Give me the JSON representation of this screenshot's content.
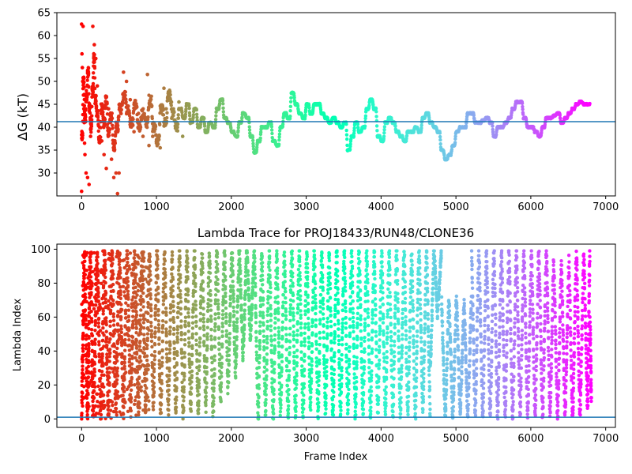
{
  "chart_data": [
    {
      "type": "scatter",
      "title": "",
      "xlabel": "",
      "ylabel": "ΔG (kT)",
      "xlim": [
        -330,
        7130
      ],
      "ylim": [
        25,
        65
      ],
      "x_ticks": [
        "0",
        "1000",
        "2000",
        "3000",
        "4000",
        "5000",
        "6000",
        "7000"
      ],
      "y_ticks": [
        "30",
        "35",
        "40",
        "45",
        "50",
        "55",
        "60",
        "65"
      ],
      "colormap": "rainbow",
      "color_by": "frame index (descending)",
      "hline": {
        "y": 41.2,
        "color": "#1f77b4"
      },
      "anchors": [
        [
          0,
          38
        ],
        [
          20,
          50
        ],
        [
          40,
          42
        ],
        [
          60,
          47
        ],
        [
          80,
          52
        ],
        [
          100,
          44
        ],
        [
          120,
          40
        ],
        [
          140,
          48
        ],
        [
          160,
          55
        ],
        [
          180,
          46
        ],
        [
          200,
          43
        ],
        [
          230,
          37
        ],
        [
          260,
          44
        ],
        [
          290,
          41
        ],
        [
          320,
          46
        ],
        [
          350,
          39
        ],
        [
          380,
          42
        ],
        [
          420,
          36
        ],
        [
          460,
          40
        ],
        [
          500,
          44
        ],
        [
          550,
          47
        ],
        [
          600,
          44
        ],
        [
          650,
          41
        ],
        [
          700,
          45
        ],
        [
          750,
          40
        ],
        [
          800,
          43
        ],
        [
          850,
          41
        ],
        [
          900,
          46
        ],
        [
          950,
          40
        ],
        [
          1000,
          37
        ],
        [
          1050,
          44
        ],
        [
          1100,
          41
        ],
        [
          1150,
          47
        ],
        [
          1200,
          43
        ],
        [
          1250,
          40
        ],
        [
          1300,
          44
        ],
        [
          1350,
          42
        ],
        [
          1400,
          45
        ],
        [
          1450,
          41
        ],
        [
          1500,
          44
        ],
        [
          1550,
          40
        ],
        [
          1600,
          42
        ],
        [
          1650,
          39
        ],
        [
          1700,
          41
        ],
        [
          1750,
          40
        ],
        [
          1800,
          44
        ],
        [
          1850,
          46
        ],
        [
          1900,
          42
        ],
        [
          1950,
          41
        ],
        [
          2000,
          39
        ],
        [
          2050,
          38
        ],
        [
          2100,
          41
        ],
        [
          2150,
          43
        ],
        [
          2200,
          42
        ],
        [
          2250,
          38
        ],
        [
          2300,
          34.5
        ],
        [
          2350,
          37
        ],
        [
          2400,
          40
        ],
        [
          2450,
          40
        ],
        [
          2500,
          41
        ],
        [
          2550,
          37
        ],
        [
          2600,
          36
        ],
        [
          2650,
          40
        ],
        [
          2700,
          43
        ],
        [
          2750,
          42
        ],
        [
          2800,
          47.5
        ],
        [
          2850,
          45
        ],
        [
          2900,
          43
        ],
        [
          2950,
          42
        ],
        [
          3000,
          45
        ],
        [
          3050,
          43
        ],
        [
          3100,
          45
        ],
        [
          3150,
          45
        ],
        [
          3200,
          43
        ],
        [
          3250,
          42
        ],
        [
          3300,
          41
        ],
        [
          3350,
          42
        ],
        [
          3400,
          41
        ],
        [
          3450,
          40
        ],
        [
          3500,
          41
        ],
        [
          3550,
          35
        ],
        [
          3600,
          38
        ],
        [
          3650,
          41
        ],
        [
          3700,
          39
        ],
        [
          3750,
          40
        ],
        [
          3800,
          44
        ],
        [
          3850,
          46
        ],
        [
          3900,
          44
        ],
        [
          3950,
          38
        ],
        [
          4000,
          37
        ],
        [
          4050,
          41
        ],
        [
          4100,
          42
        ],
        [
          4150,
          41
        ],
        [
          4200,
          39
        ],
        [
          4250,
          38
        ],
        [
          4300,
          37
        ],
        [
          4350,
          39
        ],
        [
          4400,
          39
        ],
        [
          4450,
          40
        ],
        [
          4500,
          39
        ],
        [
          4550,
          42
        ],
        [
          4600,
          43
        ],
        [
          4650,
          41
        ],
        [
          4700,
          40
        ],
        [
          4750,
          39
        ],
        [
          4800,
          35
        ],
        [
          4850,
          33
        ],
        [
          4900,
          34
        ],
        [
          4950,
          36
        ],
        [
          5000,
          39
        ],
        [
          5050,
          40
        ],
        [
          5100,
          40
        ],
        [
          5150,
          43
        ],
        [
          5200,
          43
        ],
        [
          5250,
          41
        ],
        [
          5300,
          41
        ],
        [
          5350,
          41.5
        ],
        [
          5400,
          42
        ],
        [
          5450,
          41
        ],
        [
          5500,
          38
        ],
        [
          5550,
          40
        ],
        [
          5600,
          40
        ],
        [
          5650,
          41
        ],
        [
          5700,
          42
        ],
        [
          5750,
          44
        ],
        [
          5800,
          45.5
        ],
        [
          5850,
          45.5
        ],
        [
          5900,
          42
        ],
        [
          5950,
          40
        ],
        [
          6000,
          40
        ],
        [
          6050,
          39
        ],
        [
          6100,
          38
        ],
        [
          6150,
          40
        ],
        [
          6200,
          42
        ],
        [
          6250,
          42
        ],
        [
          6300,
          42.5
        ],
        [
          6350,
          43
        ],
        [
          6400,
          41
        ],
        [
          6450,
          42
        ],
        [
          6500,
          43
        ],
        [
          6550,
          44
        ],
        [
          6600,
          45
        ],
        [
          6650,
          45.5
        ],
        [
          6700,
          45
        ],
        [
          6750,
          45
        ],
        [
          6790,
          45
        ]
      ],
      "early_scatter": [
        [
          0,
          62.5
        ],
        [
          20,
          62
        ],
        [
          5,
          56
        ],
        [
          10,
          53
        ],
        [
          15,
          50
        ],
        [
          25,
          47
        ],
        [
          30,
          44
        ],
        [
          35,
          41
        ],
        [
          40,
          36.5
        ],
        [
          45,
          34
        ],
        [
          0,
          26
        ],
        [
          60,
          30
        ],
        [
          80,
          29
        ],
        [
          100,
          27.5
        ],
        [
          120,
          38
        ],
        [
          150,
          62
        ],
        [
          170,
          58
        ],
        [
          190,
          55
        ],
        [
          210,
          49
        ],
        [
          240,
          40
        ],
        [
          270,
          37
        ],
        [
          300,
          34
        ],
        [
          330,
          31
        ],
        [
          360,
          44
        ],
        [
          400,
          33
        ],
        [
          430,
          29
        ],
        [
          460,
          30
        ],
        [
          480,
          25.5
        ],
        [
          500,
          30
        ],
        [
          560,
          52
        ],
        [
          600,
          50
        ],
        [
          650,
          46
        ],
        [
          700,
          39
        ],
        [
          760,
          43
        ],
        [
          820,
          38
        ],
        [
          880,
          51.5
        ],
        [
          900,
          36
        ],
        [
          950,
          38
        ],
        [
          1000,
          36.5
        ],
        [
          1050,
          35.5
        ],
        [
          1100,
          48.5
        ],
        [
          1130,
          44
        ],
        [
          1200,
          45.5
        ],
        [
          1300,
          45.5
        ],
        [
          1350,
          38
        ]
      ]
    },
    {
      "type": "scatter",
      "title": "Lambda Trace for PROJ18433/RUN48/CLONE36",
      "xlabel": "Frame Index",
      "ylabel": "Lambda Index",
      "xlim": [
        -330,
        7130
      ],
      "ylim": [
        -5,
        103
      ],
      "x_ticks": [
        "0",
        "1000",
        "2000",
        "3000",
        "4000",
        "5000",
        "6000",
        "7000"
      ],
      "y_ticks": [
        "0",
        "20",
        "40",
        "60",
        "80",
        "100"
      ],
      "colormap": "rainbow",
      "color_by": "frame index (descending)",
      "hline": {
        "y": 1,
        "color": "#1f77b4"
      },
      "sweeps": [
        [
          0,
          0,
          99
        ],
        [
          40,
          99,
          0
        ],
        [
          80,
          0,
          99
        ],
        [
          120,
          99,
          2
        ],
        [
          160,
          3,
          99
        ],
        [
          210,
          99,
          1
        ],
        [
          260,
          1,
          99
        ],
        [
          310,
          99,
          4
        ],
        [
          360,
          2,
          99
        ],
        [
          410,
          99,
          3
        ],
        [
          460,
          5,
          99
        ],
        [
          510,
          99,
          4
        ],
        [
          560,
          2,
          99
        ],
        [
          610,
          99,
          3
        ],
        [
          660,
          6,
          98
        ],
        [
          710,
          99,
          5
        ],
        [
          760,
          4,
          99
        ],
        [
          810,
          98,
          3
        ],
        [
          860,
          5,
          99
        ],
        [
          910,
          99,
          8
        ],
        [
          960,
          7,
          99
        ],
        [
          1010,
          99,
          3
        ],
        [
          1060,
          2,
          97
        ],
        [
          1110,
          99,
          5
        ],
        [
          1160,
          4,
          95
        ],
        [
          1210,
          97,
          6
        ],
        [
          1260,
          3,
          99
        ],
        [
          1310,
          99,
          2
        ],
        [
          1360,
          3,
          99
        ],
        [
          1410,
          98,
          5
        ],
        [
          1460,
          4,
          99
        ],
        [
          1510,
          99,
          3
        ],
        [
          1560,
          2,
          96
        ],
        [
          1610,
          99,
          8
        ],
        [
          1660,
          5,
          99
        ],
        [
          1710,
          97,
          2
        ],
        [
          1760,
          3,
          99
        ],
        [
          1810,
          99,
          12
        ],
        [
          1860,
          10,
          99
        ],
        [
          1910,
          99,
          15
        ],
        [
          1960,
          20,
          99
        ],
        [
          2010,
          99,
          25
        ],
        [
          2060,
          30,
          99
        ],
        [
          2110,
          99,
          35
        ],
        [
          2160,
          40,
          99
        ],
        [
          2210,
          99,
          45
        ],
        [
          2260,
          50,
          99
        ],
        [
          2310,
          99,
          2
        ],
        [
          2360,
          1,
          98
        ],
        [
          2410,
          96,
          3
        ],
        [
          2460,
          4,
          99
        ],
        [
          2510,
          99,
          2
        ],
        [
          2560,
          1,
          99
        ],
        [
          2610,
          98,
          3
        ],
        [
          2660,
          5,
          96
        ],
        [
          2710,
          99,
          1
        ],
        [
          2760,
          1,
          99
        ],
        [
          2810,
          99,
          2
        ],
        [
          2860,
          3,
          99
        ],
        [
          2910,
          99,
          1
        ],
        [
          2960,
          2,
          98
        ],
        [
          3010,
          99,
          5
        ],
        [
          3060,
          7,
          99
        ],
        [
          3110,
          99,
          2
        ],
        [
          3160,
          1,
          97
        ],
        [
          3210,
          99,
          4
        ],
        [
          3260,
          3,
          99
        ],
        [
          3310,
          98,
          1
        ],
        [
          3360,
          2,
          99
        ],
        [
          3410,
          99,
          3
        ],
        [
          3460,
          1,
          99
        ],
        [
          3510,
          99,
          2
        ],
        [
          3560,
          4,
          99
        ],
        [
          3610,
          99,
          1
        ],
        [
          3660,
          3,
          98
        ],
        [
          3710,
          99,
          5
        ],
        [
          3760,
          2,
          99
        ],
        [
          3810,
          99,
          3
        ],
        [
          3860,
          1,
          99
        ],
        [
          3910,
          99,
          2
        ],
        [
          3960,
          5,
          96
        ],
        [
          4010,
          99,
          3
        ],
        [
          4060,
          2,
          99
        ],
        [
          4110,
          99,
          1
        ],
        [
          4160,
          3,
          99
        ],
        [
          4210,
          98,
          2
        ],
        [
          4260,
          1,
          99
        ],
        [
          4310,
          99,
          4
        ],
        [
          4360,
          3,
          97
        ],
        [
          4410,
          99,
          2
        ],
        [
          4460,
          1,
          99
        ],
        [
          4510,
          98,
          5
        ],
        [
          4560,
          4,
          99
        ],
        [
          4610,
          99,
          2
        ],
        [
          4660,
          30,
          99
        ],
        [
          4710,
          99,
          60
        ],
        [
          4760,
          65,
          99
        ],
        [
          4810,
          70,
          1
        ],
        [
          4860,
          2,
          70
        ],
        [
          4910,
          68,
          1
        ],
        [
          4960,
          1,
          72
        ],
        [
          5010,
          70,
          2
        ],
        [
          5060,
          3,
          66
        ],
        [
          5110,
          70,
          1
        ],
        [
          5160,
          1,
          72
        ],
        [
          5210,
          99,
          2
        ],
        [
          5260,
          3,
          99
        ],
        [
          5310,
          97,
          1
        ],
        [
          5360,
          1,
          99
        ],
        [
          5410,
          99,
          3
        ],
        [
          5460,
          2,
          99
        ],
        [
          5510,
          99,
          1
        ],
        [
          5560,
          1,
          97
        ],
        [
          5610,
          99,
          3
        ],
        [
          5660,
          2,
          99
        ],
        [
          5710,
          98,
          1
        ],
        [
          5760,
          1,
          99
        ],
        [
          5810,
          99,
          2
        ],
        [
          5860,
          3,
          99
        ],
        [
          5910,
          99,
          1
        ],
        [
          5960,
          1,
          95
        ],
        [
          6010,
          99,
          2
        ],
        [
          6060,
          2,
          99
        ],
        [
          6110,
          97,
          1
        ],
        [
          6160,
          1,
          99
        ],
        [
          6210,
          99,
          3
        ],
        [
          6260,
          2,
          94
        ],
        [
          6310,
          88,
          1
        ],
        [
          6360,
          1,
          90
        ],
        [
          6410,
          92,
          2
        ],
        [
          6460,
          3,
          88
        ],
        [
          6510,
          95,
          1
        ],
        [
          6560,
          1,
          96
        ],
        [
          6610,
          99,
          2
        ],
        [
          6660,
          2,
          98
        ],
        [
          6710,
          97,
          5
        ],
        [
          6760,
          8,
          98
        ],
        [
          6790,
          60,
          10
        ]
      ]
    }
  ]
}
